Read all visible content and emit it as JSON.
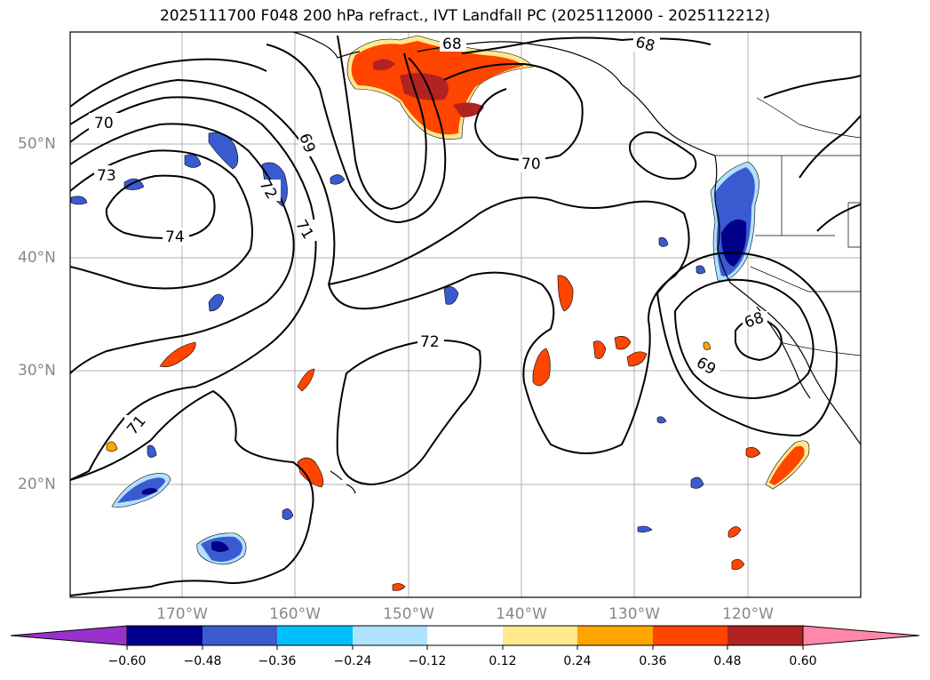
{
  "title": "2025111700 F048 200 hPa refract., IVT Landfall PC (2025112000 - 2025112212)",
  "axes": {
    "lon_ticks": [
      "170°W",
      "160°W",
      "150°W",
      "140°W",
      "130°W",
      "120°W"
    ],
    "lat_ticks": [
      "50°N",
      "40°N",
      "30°N",
      "20°N"
    ]
  },
  "contour_labels": [
    "70",
    "73",
    "74",
    "68",
    "69",
    "72",
    "71",
    "72",
    "70",
    "68",
    "68",
    "69",
    "71"
  ],
  "colorbar": {
    "ticks": [
      "−0.60",
      "−0.48",
      "−0.36",
      "−0.24",
      "−0.12",
      "0.12",
      "0.24",
      "0.36",
      "0.48",
      "0.60"
    ],
    "colors": [
      "#9932cc",
      "#00008b",
      "#3a5bd0",
      "#00bfff",
      "#b0e2ff",
      "#ffffff",
      "#ffe98c",
      "#ffa500",
      "#ff4500",
      "#b22222",
      "#ff88aa"
    ]
  }
}
